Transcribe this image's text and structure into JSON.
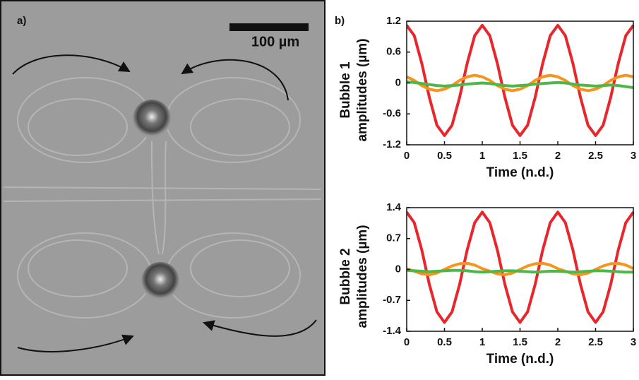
{
  "panel_a": {
    "label": "a)",
    "scale_bar": "100 µm"
  },
  "panel_b_label": "b)",
  "chart_data": [
    {
      "type": "line",
      "ylabel": [
        "Bubble 1",
        "amplitudes (µm)"
      ],
      "xlabel": "Time (n.d.)",
      "x": [
        0,
        0.1,
        0.2,
        0.3,
        0.4,
        0.5,
        0.6,
        0.7,
        0.8,
        0.9,
        1,
        1.1,
        1.2,
        1.3,
        1.4,
        1.5,
        1.6,
        1.7,
        1.8,
        1.9,
        2,
        2.1,
        2.2,
        2.3,
        2.4,
        2.5,
        2.6,
        2.7,
        2.8,
        2.9,
        3
      ],
      "xlim": [
        0,
        3
      ],
      "xticks": [
        0,
        0.5,
        1,
        1.5,
        2,
        2.5,
        3
      ],
      "ylim": [
        -1.2,
        1.2
      ],
      "yticks": [
        1.2,
        0.6,
        0,
        -0.6,
        -1.2
      ],
      "series": [
        {
          "color": "#e8262b",
          "values": [
            1.12,
            0.92,
            0.38,
            -0.28,
            -0.82,
            -1.02,
            -0.82,
            -0.28,
            0.38,
            0.92,
            1.12,
            0.92,
            0.38,
            -0.28,
            -0.82,
            -1.02,
            -0.82,
            -0.28,
            0.38,
            0.92,
            1.12,
            0.92,
            0.38,
            -0.28,
            -0.82,
            -1.02,
            -0.82,
            -0.28,
            0.38,
            0.92,
            1.12
          ]
        },
        {
          "color": "#f7941d",
          "values": [
            0.12,
            0.05,
            -0.05,
            -0.12,
            -0.15,
            -0.12,
            -0.05,
            0.05,
            0.12,
            0.15,
            0.12,
            0.05,
            -0.05,
            -0.12,
            -0.15,
            -0.12,
            -0.05,
            0.05,
            0.12,
            0.15,
            0.12,
            0.05,
            -0.05,
            -0.12,
            -0.15,
            -0.12,
            -0.05,
            0.05,
            0.12,
            0.15,
            0.12
          ]
        },
        {
          "color": "#4db848",
          "values": [
            0.02,
            0.01,
            -0.01,
            -0.03,
            -0.05,
            -0.06,
            -0.05,
            -0.04,
            -0.02,
            -0.01,
            0,
            -0.01,
            -0.03,
            -0.05,
            -0.06,
            -0.05,
            -0.04,
            -0.02,
            -0.01,
            0,
            0.01,
            0,
            -0.02,
            -0.04,
            -0.05,
            -0.06,
            -0.05,
            -0.04,
            -0.05,
            -0.07,
            -0.09
          ]
        }
      ]
    },
    {
      "type": "line",
      "ylabel": [
        "Bubble 2",
        "amplitudes (µm)"
      ],
      "xlabel": "Time (n.d.)",
      "x": [
        0,
        0.1,
        0.2,
        0.3,
        0.4,
        0.5,
        0.6,
        0.7,
        0.8,
        0.9,
        1,
        1.1,
        1.2,
        1.3,
        1.4,
        1.5,
        1.6,
        1.7,
        1.8,
        1.9,
        2,
        2.1,
        2.2,
        2.3,
        2.4,
        2.5,
        2.6,
        2.7,
        2.8,
        2.9,
        3
      ],
      "xlim": [
        0,
        3
      ],
      "xticks": [
        0,
        0.5,
        1,
        1.5,
        2,
        2.5,
        3
      ],
      "ylim": [
        -1.4,
        1.4
      ],
      "yticks": [
        1.4,
        0.7,
        0,
        -0.7,
        -1.4
      ],
      "series": [
        {
          "color": "#e8262b",
          "values": [
            1.3,
            1.06,
            0.44,
            -0.34,
            -0.96,
            -1.2,
            -0.96,
            -0.34,
            0.44,
            1.06,
            1.3,
            1.06,
            0.44,
            -0.34,
            -0.96,
            -1.2,
            -0.96,
            -0.34,
            0.44,
            1.06,
            1.3,
            1.06,
            0.44,
            -0.34,
            -0.96,
            -1.2,
            -0.96,
            -0.34,
            0.44,
            1.06,
            1.3
          ]
        },
        {
          "color": "#f7941d",
          "values": [
            0.02,
            -0.04,
            -0.1,
            -0.12,
            -0.08,
            0,
            0.08,
            0.13,
            0.14,
            0.1,
            0.02,
            -0.04,
            -0.1,
            -0.12,
            -0.08,
            0,
            0.08,
            0.13,
            0.14,
            0.1,
            0.02,
            -0.04,
            -0.1,
            -0.12,
            -0.08,
            0,
            0.08,
            0.13,
            0.14,
            0.1,
            0.02
          ]
        },
        {
          "color": "#4db848",
          "values": [
            -0.02,
            -0.03,
            -0.04,
            -0.05,
            -0.04,
            -0.03,
            -0.02,
            -0.02,
            -0.03,
            -0.05,
            -0.06,
            -0.05,
            -0.04,
            -0.03,
            -0.03,
            -0.04,
            -0.05,
            -0.06,
            -0.05,
            -0.04,
            -0.04,
            -0.05,
            -0.06,
            -0.05,
            -0.04,
            -0.03,
            -0.03,
            -0.04,
            -0.05,
            -0.06,
            -0.06
          ]
        }
      ]
    }
  ]
}
